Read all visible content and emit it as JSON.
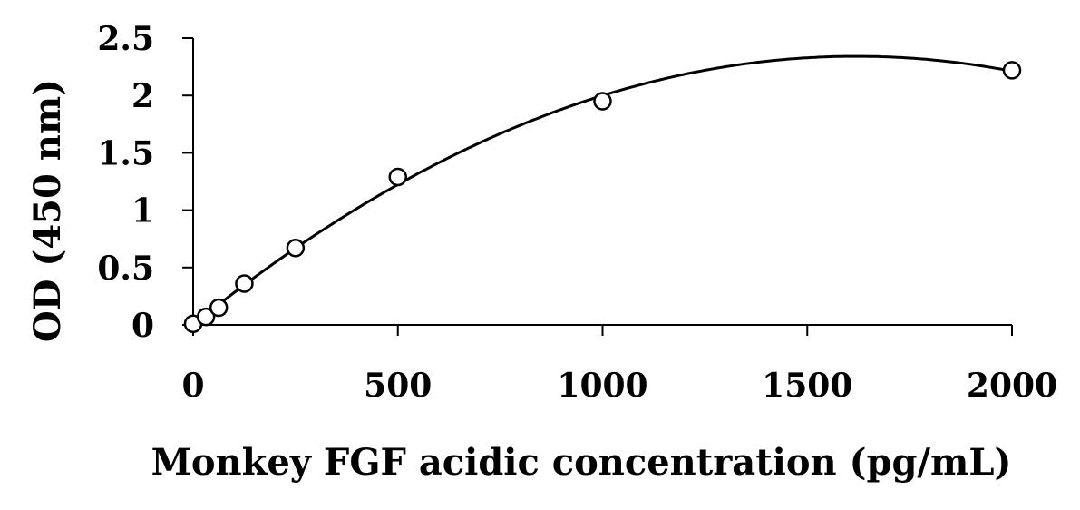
{
  "chart_data": {
    "type": "scatter",
    "xlabel": "Monkey FGF acidic concentration (pg/mL)",
    "ylabel": "OD (450 nm)",
    "xlim": [
      0,
      2000
    ],
    "ylim": [
      0,
      2.5
    ],
    "xticks": [
      0,
      500,
      1000,
      1500,
      2000
    ],
    "yticks": [
      0,
      0.5,
      1,
      1.5,
      2,
      2.5
    ],
    "xtick_labels": [
      "0",
      "500",
      "1000",
      "1500",
      "2000"
    ],
    "ytick_labels": [
      "0",
      "0.5",
      "1",
      "1.5",
      "2",
      "2.5"
    ],
    "grid": false,
    "series": [
      {
        "x": [
          0,
          31.25,
          62.5,
          125,
          250,
          500,
          1000,
          2000
        ],
        "y": [
          0.01,
          0.07,
          0.15,
          0.36,
          0.67,
          1.29,
          1.95,
          2.22
        ],
        "marker": "open-circle",
        "trendline": "polynomial"
      }
    ]
  }
}
